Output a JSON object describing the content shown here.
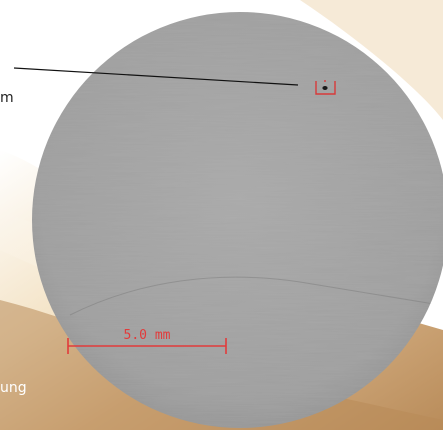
{
  "callout": {
    "label_fragment": "m"
  },
  "caption": {
    "fragment": "ung"
  },
  "scale_bar": {
    "label": "5.0 mm",
    "color": "#e23b3b"
  },
  "defect_marker": {
    "color": "#d83a3a"
  },
  "colors": {
    "sample_gray": "#a3a3a3",
    "sand_light": "#e9cfa3",
    "sand_dark": "#b98c5a"
  }
}
